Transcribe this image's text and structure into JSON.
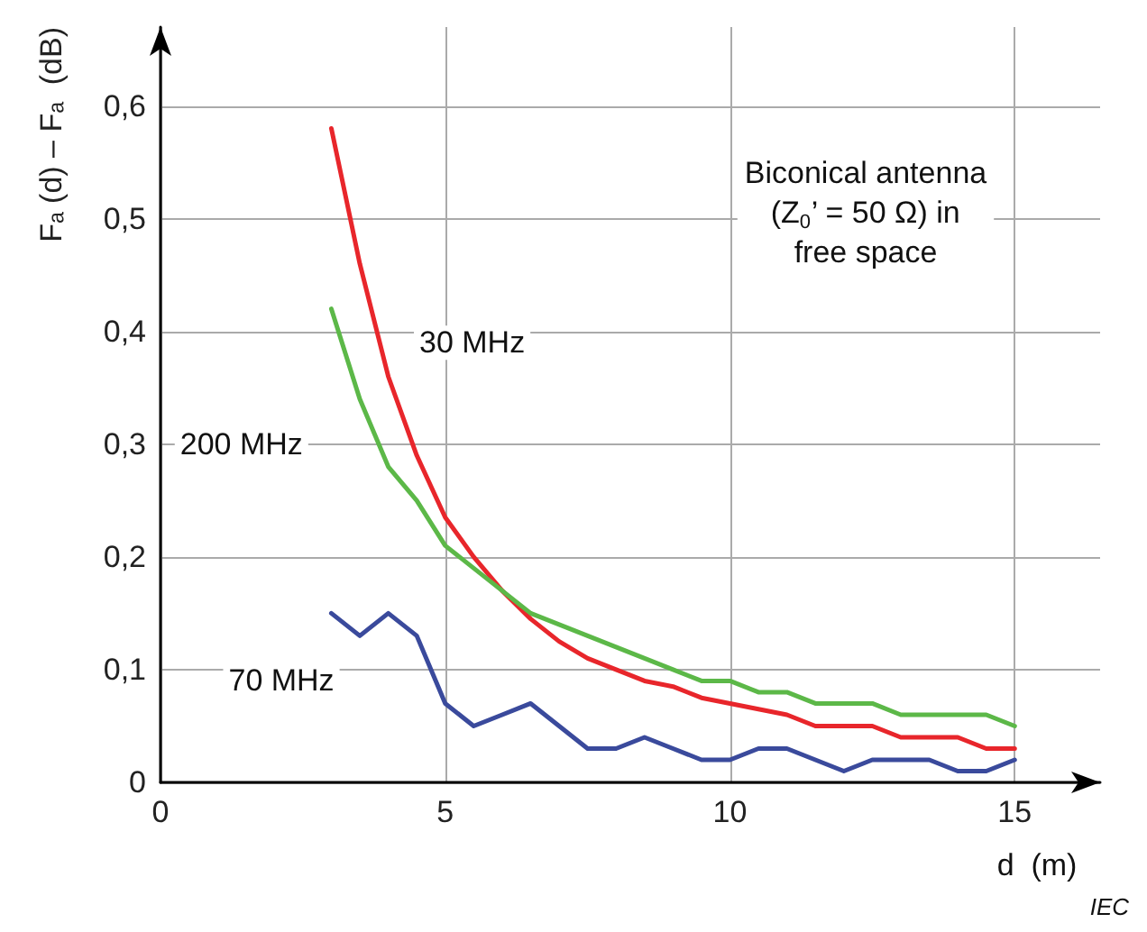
{
  "chart_data": {
    "type": "line",
    "x": [
      3,
      3.5,
      4,
      4.5,
      5,
      5.5,
      6,
      6.5,
      7,
      7.5,
      8,
      8.5,
      9,
      9.5,
      10,
      10.5,
      11,
      11.5,
      12,
      12.5,
      13,
      13.5,
      14,
      14.5,
      15
    ],
    "series": [
      {
        "name": "30 MHz",
        "color": "#e8262b",
        "values": [
          0.58,
          0.46,
          0.36,
          0.29,
          0.235,
          0.2,
          0.17,
          0.145,
          0.125,
          0.11,
          0.1,
          0.09,
          0.085,
          0.075,
          0.07,
          0.065,
          0.06,
          0.05,
          0.05,
          0.05,
          0.04,
          0.04,
          0.04,
          0.03,
          0.03
        ]
      },
      {
        "name": "200 MHz",
        "color": "#5cb848",
        "values": [
          0.42,
          0.34,
          0.28,
          0.25,
          0.21,
          0.19,
          0.17,
          0.15,
          0.14,
          0.13,
          0.12,
          0.11,
          0.1,
          0.09,
          0.09,
          0.08,
          0.08,
          0.07,
          0.07,
          0.07,
          0.06,
          0.06,
          0.06,
          0.06,
          0.05
        ]
      },
      {
        "name": "70 MHz",
        "color": "#3a4a9c",
        "values": [
          0.15,
          0.13,
          0.15,
          0.13,
          0.07,
          0.05,
          0.06,
          0.07,
          0.05,
          0.03,
          0.03,
          0.04,
          0.03,
          0.02,
          0.02,
          0.03,
          0.03,
          0.02,
          0.01,
          0.02,
          0.02,
          0.02,
          0.01,
          0.01,
          0.02
        ]
      }
    ],
    "xlabel": "d  (m)",
    "ylabel": "Fₐ (d) – Fₐ  (dB)",
    "xlim": [
      0,
      16.5
    ],
    "xticks": [
      0,
      5,
      10,
      15
    ],
    "ylim": [
      0,
      0.67
    ],
    "yticks": [
      0,
      {
        "value": 0.1,
        "label": "0,1"
      },
      {
        "value": 0.2,
        "label": "0,2"
      },
      {
        "value": 0.3,
        "label": "0,3"
      },
      {
        "value": 0.4,
        "label": "0,4"
      },
      {
        "value": 0.5,
        "label": "0,5"
      },
      {
        "value": 0.6,
        "label": "0,6"
      }
    ],
    "annotations": [
      "Biconical antenna\n(Z$_{0}$’ = 50 Ω) in\nfree space",
      "IEC"
    ],
    "grid": true,
    "legend": false,
    "marker": "none",
    "line_style": "solid"
  }
}
